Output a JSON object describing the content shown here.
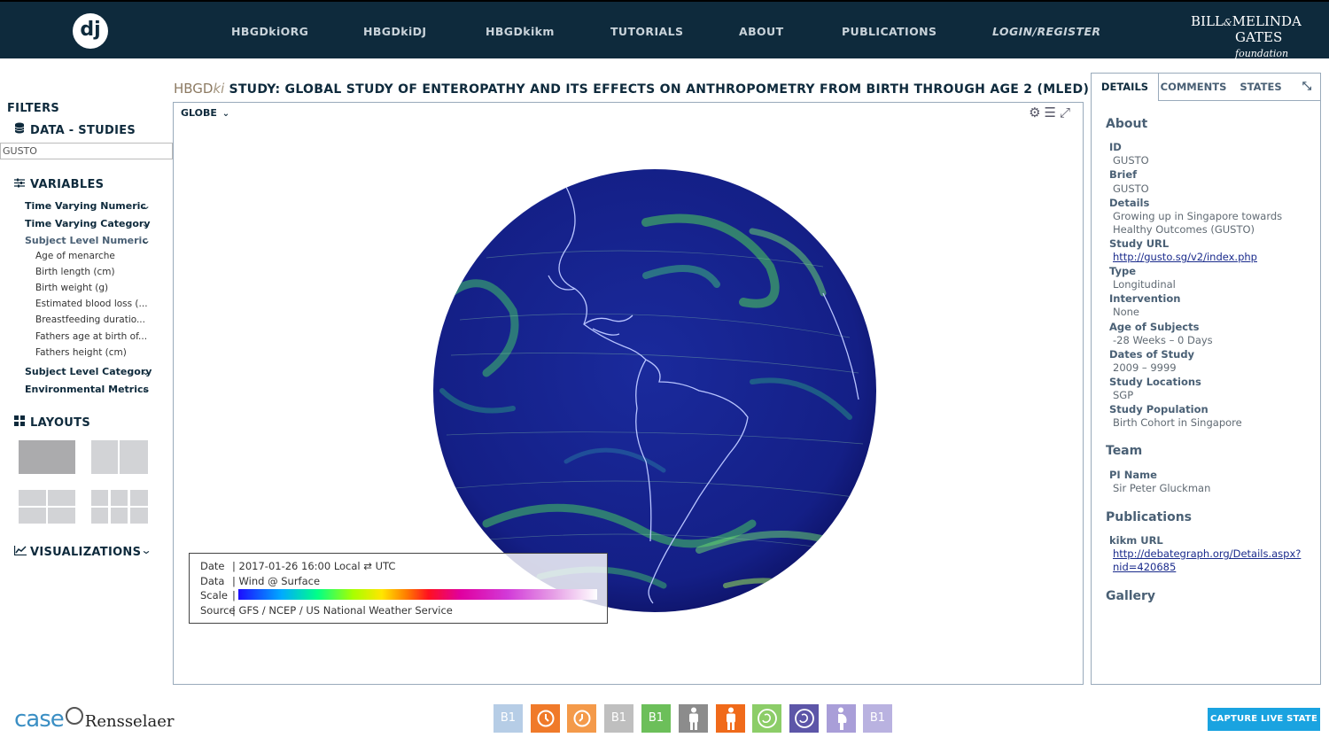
{
  "nav": {
    "logo": "dj",
    "items": [
      "HBGDkiORG",
      "HBGDkiDJ",
      "HBGDkikm",
      "TUTORIALS",
      "ABOUT",
      "PUBLICATIONS"
    ],
    "login": "LOGIN/REGISTER",
    "partner_line1": "BILL",
    "partner_amp": "&",
    "partner_line1b": "MELINDA",
    "partner_line2": "GATES",
    "partner_line2b": "foundation"
  },
  "sidebar": {
    "filters_title": "FILTERS",
    "data_title": "DATA - STUDIES",
    "search_value": "GUSTO",
    "variables_title": "VARIABLES",
    "categories": [
      "Time Varying Numeric",
      "Time Varying Category",
      "Subject Level Numeric",
      "Subject Level Category",
      "Environmental Metrics"
    ],
    "subject_numeric_items": [
      "Age of menarche",
      "Birth length (cm)",
      "Birth weight (g)",
      "Estimated blood loss (...",
      "Breastfeeding duratio...",
      "Fathers age at birth of...",
      "Fathers height (cm)"
    ],
    "layouts_title": "LAYOUTS",
    "visualizations_title": "VISUALIZATIONS"
  },
  "main": {
    "title_prefix": "HBGD",
    "title_prefix_ki": "ki",
    "title": "STUDY: GLOBAL STUDY OF ENTEROPATHY AND ITS EFFECTS ON ANTHROPOMETRY FROM BIRTH THROUGH AGE 2 (MLED)",
    "view_select": "GLOBE",
    "legend": {
      "date_label": "Date",
      "date_value": "2017-01-26 16:00 Local ⇄ UTC",
      "data_label": "Data",
      "data_value": "Wind @ Surface",
      "scale_label": "Scale",
      "source_label": "Source",
      "source_value": "GFS / NCEP / US National Weather Service"
    }
  },
  "details": {
    "tabs": [
      "DETAILS",
      "COMMENTS",
      "STATES"
    ],
    "about_title": "About",
    "fields": [
      {
        "label": "ID",
        "value": "GUSTO"
      },
      {
        "label": "Brief",
        "value": "GUSTO"
      },
      {
        "label": "Details",
        "value": "Growing up in Singapore towards",
        "value2": "Healthy Outcomes (GUSTO)"
      },
      {
        "label": "Study URL",
        "value": "http://gusto.sg/v2/index.php"
      },
      {
        "label": "Type",
        "value": "Longitudinal"
      },
      {
        "label": "Intervention",
        "value": "None"
      },
      {
        "label": "Age of Subjects",
        "value": "-28 Weeks – 0 Days"
      },
      {
        "label": "Dates of Study",
        "value": "2009 – 9999"
      },
      {
        "label": "Study Locations",
        "value": "SGP"
      },
      {
        "label": "Study Population",
        "value": "Birth Cohort in Singapore"
      }
    ],
    "team_title": "Team",
    "pi_label": "PI Name",
    "pi_value": "Sir Peter Gluckman",
    "publications_title": "Publications",
    "kikm_label": "kikm URL",
    "kikm_value": "http://debategraph.org/Details.aspx?",
    "kikm_value2": "nid=420685",
    "gallery_title": "Gallery"
  },
  "footer": {
    "case_text": "case",
    "rensselaer": "Rensselaer",
    "icons": [
      {
        "name": "b1-blue-icon",
        "label": "B1",
        "color": "#b6cde6"
      },
      {
        "name": "orange-clock-icon",
        "label": "",
        "color": "#f07a2a"
      },
      {
        "name": "orange-clock-alt-icon",
        "label": "",
        "color": "#f49a4a"
      },
      {
        "name": "b1-gray-icon",
        "label": "B1",
        "color": "#bfbfbf"
      },
      {
        "name": "b1-green-icon",
        "label": "B1",
        "color": "#6cbf5a"
      },
      {
        "name": "person-gray-icon",
        "label": "",
        "color": "#8c8c8c"
      },
      {
        "name": "person-orange-icon",
        "label": "",
        "color": "#f06a1a"
      },
      {
        "name": "fetus-green-icon",
        "label": "",
        "color": "#8ccd68"
      },
      {
        "name": "fetus-purple-icon",
        "label": "",
        "color": "#5d56a8"
      },
      {
        "name": "pregnant-purple-icon",
        "label": "",
        "color": "#a99ed8"
      },
      {
        "name": "b1-lavender-icon",
        "label": "B1",
        "color": "#b9b2e0"
      }
    ],
    "capture_label": "CAPTURE LIVE STATE"
  }
}
